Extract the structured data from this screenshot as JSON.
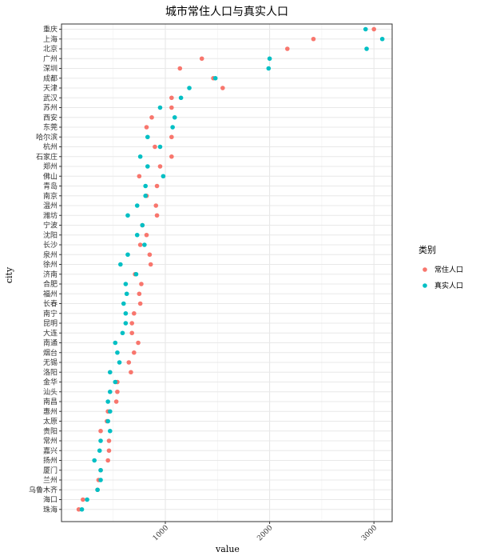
{
  "chart_data": {
    "type": "scatter",
    "title": "城市常住人口与真实人口",
    "xlabel": "value",
    "ylabel": "city",
    "xlim": [
      0,
      3200
    ],
    "x_ticks": [
      1000,
      2000,
      3000
    ],
    "x_tick_labels": [
      "1000",
      "2000",
      "3000"
    ],
    "grid": true,
    "legend": {
      "title": "类别",
      "placement": "right"
    },
    "colors": {
      "常住人口": "#F8766D",
      "真实人口": "#00BFC4"
    },
    "categories": [
      "重庆",
      "上海",
      "北京",
      "广州",
      "深圳",
      "成都",
      "天津",
      "武汉",
      "苏州",
      "西安",
      "东莞",
      "哈尔滨",
      "杭州",
      "石家庄",
      "郑州",
      "佛山",
      "青岛",
      "南京",
      "温州",
      "潍坊",
      "宁波",
      "沈阳",
      "长沙",
      "泉州",
      "徐州",
      "济南",
      "合肥",
      "福州",
      "长春",
      "南宁",
      "昆明",
      "大连",
      "南通",
      "烟台",
      "无锡",
      "洛阳",
      "金华",
      "汕头",
      "南昌",
      "惠州",
      "太原",
      "贵阳",
      "常州",
      "嘉兴",
      "扬州",
      "厦门",
      "兰州",
      "乌鲁木齐",
      "海口",
      "珠海"
    ],
    "series": [
      {
        "name": "常住人口",
        "values": [
          3000,
          2420,
          2170,
          1350,
          1140,
          1460,
          1550,
          1060,
          1060,
          870,
          820,
          1060,
          900,
          1060,
          950,
          750,
          920,
          820,
          910,
          920,
          780,
          820,
          760,
          850,
          860,
          710,
          770,
          750,
          760,
          700,
          680,
          680,
          740,
          700,
          650,
          670,
          540,
          540,
          530,
          450,
          440,
          380,
          460,
          460,
          450,
          380,
          360,
          350,
          210,
          170
        ]
      },
      {
        "name": "真实人口",
        "values": [
          2920,
          3080,
          2930,
          2000,
          1990,
          1480,
          1230,
          1150,
          950,
          1090,
          1070,
          830,
          950,
          760,
          830,
          980,
          810,
          810,
          730,
          640,
          780,
          730,
          800,
          640,
          570,
          720,
          620,
          630,
          600,
          620,
          620,
          590,
          520,
          540,
          560,
          470,
          520,
          470,
          450,
          470,
          450,
          470,
          380,
          370,
          320,
          380,
          380,
          350,
          250,
          200
        ]
      }
    ]
  }
}
